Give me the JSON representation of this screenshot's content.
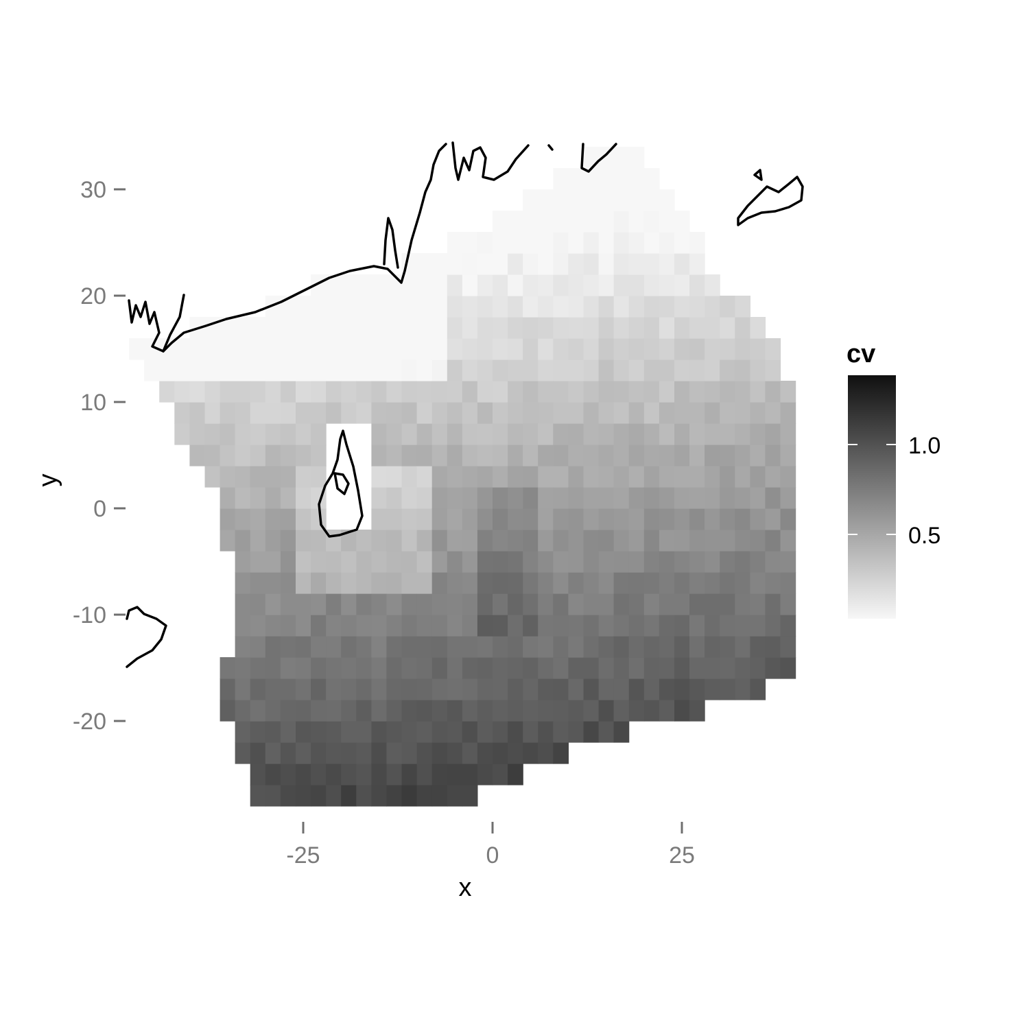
{
  "chart_data": {
    "type": "heatmap",
    "xlabel": "x",
    "ylabel": "y",
    "x_ticks": [
      "-25",
      "0",
      "25"
    ],
    "y_ticks": [
      "30",
      "20",
      "10",
      "0",
      "-10",
      "-20"
    ],
    "legend": {
      "title": "cv",
      "labels": [
        "1.0",
        "0.5"
      ],
      "range": [
        0.05,
        1.4
      ],
      "colors": [
        "#f7f7f7",
        "#101010"
      ],
      "placement": "right"
    },
    "grid": false,
    "cell_size": 2,
    "x_cell_range": [
      -48,
      40
    ],
    "y_cell_range": [
      -28,
      33
    ],
    "field_description_values": {
      "south_max": 1.35,
      "north_min": 0.3,
      "coast_min": 0.12
    }
  },
  "map": {
    "coastline_color": "#000000"
  }
}
